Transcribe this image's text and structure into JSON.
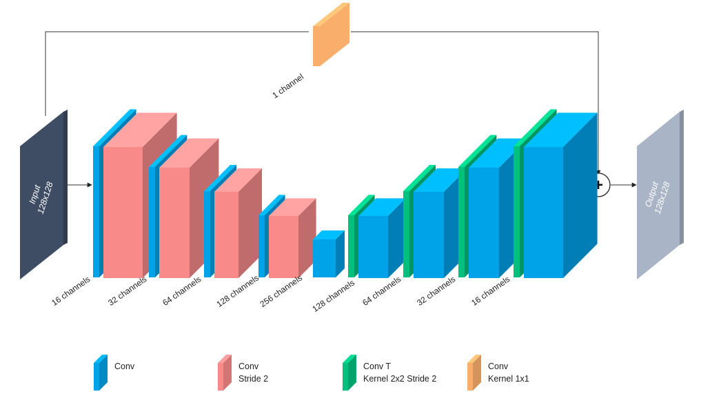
{
  "colors": {
    "conv": "#00A2E8",
    "conv_stride2": "#F88A8A",
    "conv_t": "#00C07F",
    "conv_1x1": "#FAAE6B",
    "input": "#3E4D63",
    "output": "#A9B4C6"
  },
  "input": {
    "line1": "Input",
    "line2": "128x128"
  },
  "output": {
    "line1": "Output",
    "line2": "128x128"
  },
  "skip_block_label": "1 channel",
  "sum_symbol": "+",
  "stage_labels": [
    "16 channels",
    "32 channels",
    "64 channels",
    "128 channels",
    "256 channels",
    "128 channels",
    "64 channels",
    "32 channels",
    "16 channels"
  ],
  "legend": [
    {
      "line1": "Conv",
      "line2": ""
    },
    {
      "line1": "Conv",
      "line2": "Stride 2"
    },
    {
      "line1": "Conv T",
      "line2": "Kernel 2x2 Stride 2"
    },
    {
      "line1": "Conv",
      "line2": "Kernel 1x1"
    }
  ]
}
